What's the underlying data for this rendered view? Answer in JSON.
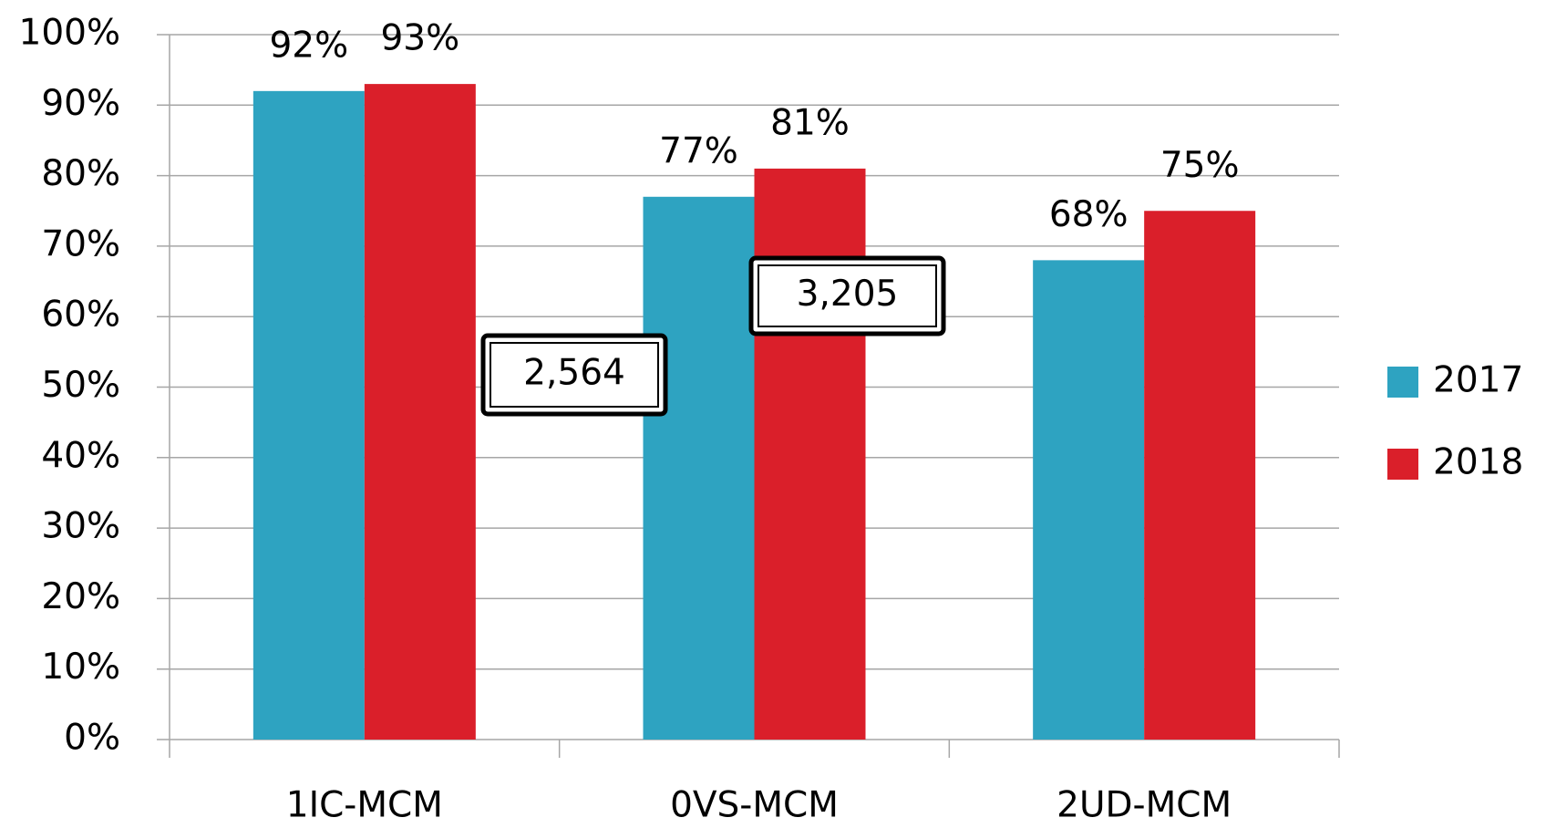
{
  "chart_data": {
    "type": "bar",
    "categories": [
      "1IC-MCM",
      "0VS-MCM",
      "2UD-MCM"
    ],
    "series": [
      {
        "name": "2017",
        "color": "#2ea3c1",
        "values": [
          92,
          77,
          68
        ],
        "value_labels": [
          "92%",
          "77%",
          "68%"
        ]
      },
      {
        "name": "2018",
        "color": "#da1f2a",
        "values": [
          93,
          81,
          75
        ],
        "value_labels": [
          "93%",
          "81%",
          "75%"
        ]
      }
    ],
    "ylim": [
      0,
      100
    ],
    "yticks": [
      {
        "value": 0,
        "label": "0%"
      },
      {
        "value": 10,
        "label": "10%"
      },
      {
        "value": 20,
        "label": "20%"
      },
      {
        "value": 30,
        "label": "30%"
      },
      {
        "value": 40,
        "label": "40%"
      },
      {
        "value": 50,
        "label": "50%"
      },
      {
        "value": 60,
        "label": "60%"
      },
      {
        "value": 70,
        "label": "70%"
      },
      {
        "value": 80,
        "label": "80%"
      },
      {
        "value": 90,
        "label": "90%"
      },
      {
        "value": 100,
        "label": "100%"
      }
    ],
    "grid": true,
    "legend": "right",
    "annotations": [
      "2,564",
      "3,205"
    ]
  }
}
